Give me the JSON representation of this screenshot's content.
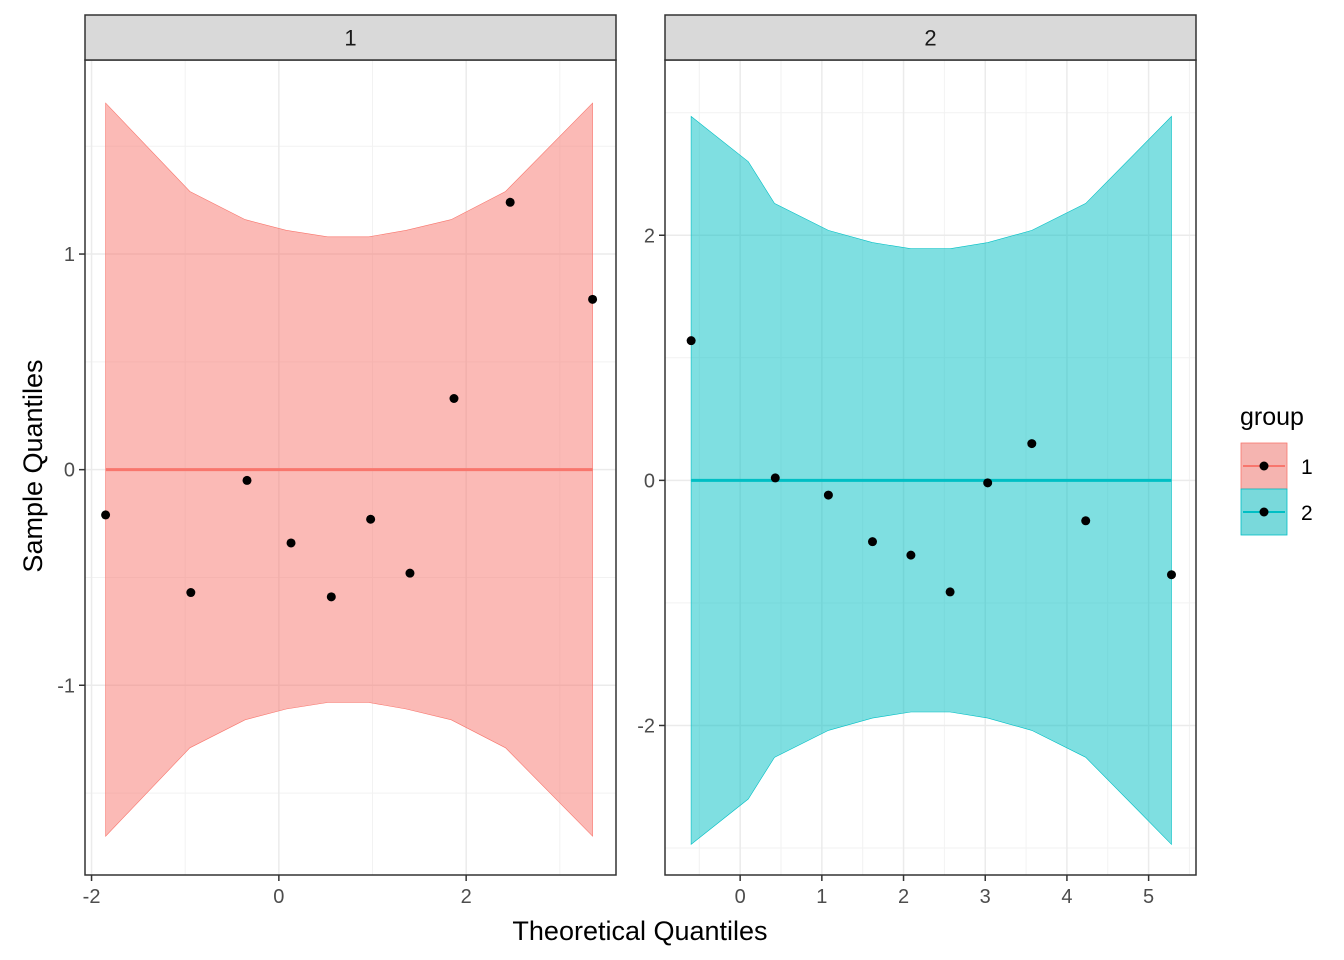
{
  "chart_data": {
    "type": "scatter",
    "subtype": "faceted qq-plot with confidence bands",
    "xlabel": "Theoretical Quantiles",
    "ylabel": "Sample Quantiles",
    "legend": {
      "title": "group",
      "position": "right",
      "entries": [
        {
          "label": "1",
          "color": "#F8766D"
        },
        {
          "label": "2",
          "color": "#00BFC4"
        }
      ]
    },
    "facets": [
      {
        "strip": "1",
        "group": "1",
        "color": "#F8766D",
        "band_color": "#F8766D",
        "xlim": [
          -2.07,
          3.6
        ],
        "ylim": [
          -1.88,
          1.9
        ],
        "xticks": [
          -2,
          0,
          2
        ],
        "xtick_labels": [
          "-2",
          "0",
          "2"
        ],
        "xminor": [
          -1,
          1,
          3
        ],
        "yticks": [
          -1,
          0,
          1
        ],
        "ytick_labels": [
          "-1",
          "0",
          "1"
        ],
        "yminor": [
          -1.5,
          -0.5,
          0.5,
          1.5
        ],
        "reference_line": {
          "y": 0,
          "x_from": -1.85,
          "x_to": 3.35
        },
        "band": {
          "x": [
            -1.85,
            -0.95,
            -0.36,
            0.08,
            0.52,
            0.96,
            1.36,
            1.84,
            2.42,
            3.35
          ],
          "upper": [
            1.7,
            1.29,
            1.16,
            1.11,
            1.08,
            1.08,
            1.11,
            1.16,
            1.29,
            1.7
          ],
          "lower": [
            -1.7,
            -1.29,
            -1.16,
            -1.11,
            -1.08,
            -1.08,
            -1.11,
            -1.16,
            -1.29,
            -1.7
          ]
        },
        "points": {
          "x": [
            -1.85,
            -0.94,
            -0.34,
            0.13,
            0.56,
            0.98,
            1.4,
            1.87,
            2.47,
            3.35
          ],
          "y": [
            -0.21,
            -0.57,
            -0.05,
            -0.34,
            -0.59,
            -0.23,
            -0.48,
            0.33,
            1.24,
            0.79
          ]
        }
      },
      {
        "strip": "2",
        "group": "2",
        "color": "#00BFC4",
        "band_color": "#00BFC4",
        "xlim": [
          -0.92,
          5.58
        ],
        "ylim": [
          -3.22,
          3.43
        ],
        "xticks": [
          0,
          1,
          2,
          3,
          4,
          5
        ],
        "xtick_labels": [
          "0",
          "1",
          "2",
          "3",
          "4",
          "5"
        ],
        "xminor": [
          -0.5,
          0.5,
          1.5,
          2.5,
          3.5,
          4.5,
          5.5
        ],
        "yticks": [
          -2,
          0,
          2
        ],
        "ytick_labels": [
          "-2",
          "0",
          "2"
        ],
        "yminor": [
          -3,
          -1,
          1,
          3
        ],
        "reference_line": {
          "y": 0,
          "x_from": -0.6,
          "x_to": 5.28
        },
        "band": {
          "x": [
            -0.6,
            0.1,
            0.42,
            1.08,
            1.62,
            2.09,
            2.57,
            3.03,
            3.57,
            4.23,
            5.28
          ],
          "upper": [
            2.97,
            2.6,
            2.26,
            2.04,
            1.94,
            1.89,
            1.89,
            1.94,
            2.04,
            2.26,
            2.97
          ],
          "lower": [
            -2.97,
            -2.6,
            -2.26,
            -2.04,
            -1.94,
            -1.89,
            -1.89,
            -1.94,
            -2.04,
            -2.26,
            -2.97
          ]
        },
        "points": {
          "x": [
            -0.6,
            0.43,
            1.08,
            1.62,
            2.09,
            2.57,
            3.03,
            3.57,
            4.23,
            5.28
          ],
          "y": [
            1.14,
            0.02,
            -0.12,
            -0.5,
            -0.61,
            -0.91,
            -0.02,
            0.3,
            -0.33,
            -0.77
          ]
        }
      }
    ]
  }
}
